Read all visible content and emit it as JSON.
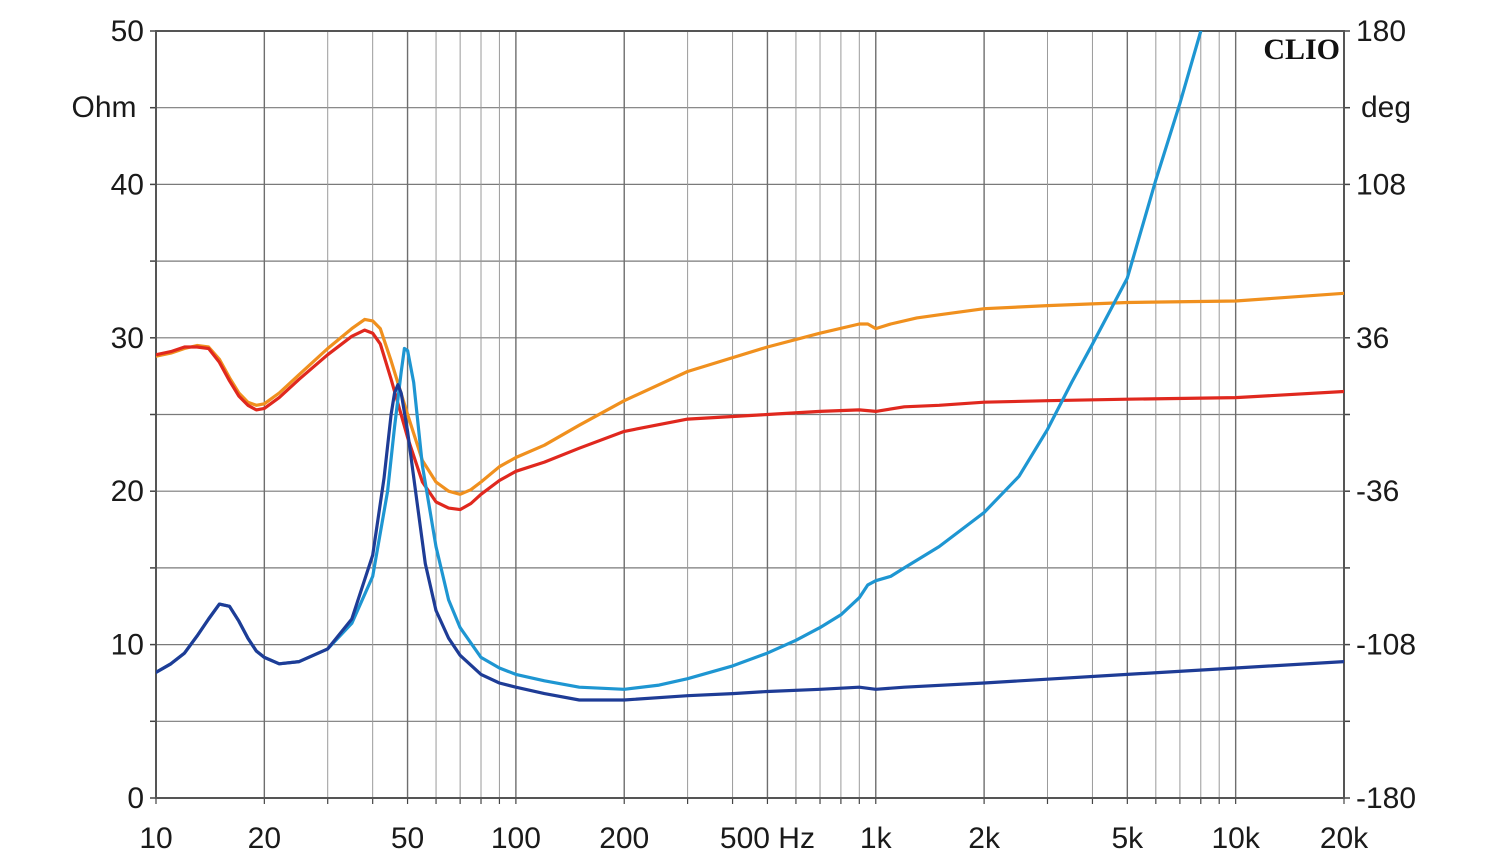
{
  "chart_data": {
    "type": "line",
    "brand": "CLIO",
    "x_axis": {
      "scale": "log",
      "range": [
        10,
        20000
      ],
      "tick_labels": [
        {
          "value": 10,
          "label": "10"
        },
        {
          "value": 20,
          "label": "20"
        },
        {
          "value": 50,
          "label": "50"
        },
        {
          "value": 100,
          "label": "100"
        },
        {
          "value": 200,
          "label": "200"
        },
        {
          "value": 500,
          "label": "500 Hz"
        },
        {
          "value": 1000,
          "label": "1k"
        },
        {
          "value": 2000,
          "label": "2k"
        },
        {
          "value": 5000,
          "label": "5k"
        },
        {
          "value": 10000,
          "label": "10k"
        },
        {
          "value": 20000,
          "label": "20k"
        }
      ]
    },
    "y_left": {
      "unit_label": "Ohm",
      "range": [
        0,
        50
      ],
      "tick_labels": [
        "0",
        "10",
        "20",
        "30",
        "40",
        "50"
      ]
    },
    "y_right": {
      "unit_label": "deg",
      "range": [
        -180,
        180
      ],
      "tick_labels": [
        "-180",
        "-108",
        "-36",
        "36",
        "108",
        "180"
      ]
    },
    "grid": true,
    "series": [
      {
        "axis": "left",
        "color": "#f0901e",
        "points": [
          [
            10,
            28.8
          ],
          [
            11,
            29.0
          ],
          [
            12,
            29.3
          ],
          [
            13,
            29.5
          ],
          [
            14,
            29.4
          ],
          [
            15,
            28.6
          ],
          [
            16,
            27.4
          ],
          [
            17,
            26.4
          ],
          [
            18,
            25.8
          ],
          [
            19,
            25.6
          ],
          [
            20,
            25.7
          ],
          [
            22,
            26.4
          ],
          [
            25,
            27.6
          ],
          [
            30,
            29.3
          ],
          [
            35,
            30.6
          ],
          [
            38,
            31.2
          ],
          [
            40,
            31.1
          ],
          [
            42,
            30.6
          ],
          [
            45,
            28.5
          ],
          [
            50,
            25.0
          ],
          [
            55,
            22.0
          ],
          [
            60,
            20.6
          ],
          [
            65,
            20.0
          ],
          [
            70,
            19.8
          ],
          [
            75,
            20.1
          ],
          [
            80,
            20.6
          ],
          [
            90,
            21.6
          ],
          [
            100,
            22.2
          ],
          [
            120,
            23.0
          ],
          [
            150,
            24.3
          ],
          [
            200,
            25.9
          ],
          [
            300,
            27.8
          ],
          [
            500,
            29.4
          ],
          [
            700,
            30.3
          ],
          [
            900,
            30.9
          ],
          [
            950,
            30.9
          ],
          [
            1000,
            30.6
          ],
          [
            1100,
            30.9
          ],
          [
            1300,
            31.3
          ],
          [
            1500,
            31.5
          ],
          [
            2000,
            31.9
          ],
          [
            3000,
            32.1
          ],
          [
            5000,
            32.3
          ],
          [
            10000,
            32.4
          ],
          [
            20000,
            32.9
          ]
        ]
      },
      {
        "axis": "left",
        "color": "#e0281e",
        "points": [
          [
            10,
            28.9
          ],
          [
            11,
            29.1
          ],
          [
            12,
            29.4
          ],
          [
            13,
            29.4
          ],
          [
            14,
            29.3
          ],
          [
            15,
            28.4
          ],
          [
            16,
            27.2
          ],
          [
            17,
            26.2
          ],
          [
            18,
            25.6
          ],
          [
            19,
            25.3
          ],
          [
            20,
            25.4
          ],
          [
            22,
            26.1
          ],
          [
            25,
            27.3
          ],
          [
            30,
            28.9
          ],
          [
            35,
            30.1
          ],
          [
            38,
            30.5
          ],
          [
            40,
            30.3
          ],
          [
            42,
            29.6
          ],
          [
            45,
            27.3
          ],
          [
            50,
            23.5
          ],
          [
            55,
            20.6
          ],
          [
            60,
            19.3
          ],
          [
            65,
            18.9
          ],
          [
            70,
            18.8
          ],
          [
            75,
            19.2
          ],
          [
            80,
            19.8
          ],
          [
            90,
            20.7
          ],
          [
            100,
            21.3
          ],
          [
            120,
            21.9
          ],
          [
            150,
            22.8
          ],
          [
            200,
            23.9
          ],
          [
            300,
            24.7
          ],
          [
            500,
            25.0
          ],
          [
            700,
            25.2
          ],
          [
            900,
            25.3
          ],
          [
            1000,
            25.2
          ],
          [
            1200,
            25.5
          ],
          [
            1500,
            25.6
          ],
          [
            2000,
            25.8
          ],
          [
            3000,
            25.9
          ],
          [
            5000,
            26.0
          ],
          [
            10000,
            26.1
          ],
          [
            20000,
            26.5
          ]
        ]
      },
      {
        "axis": "right",
        "color": "#1e96d2",
        "points": [
          [
            10,
            -121
          ],
          [
            11,
            -117
          ],
          [
            12,
            -112
          ],
          [
            13,
            -104
          ],
          [
            14,
            -96
          ],
          [
            15,
            -89
          ],
          [
            16,
            -90
          ],
          [
            17,
            -97
          ],
          [
            18,
            -105
          ],
          [
            19,
            -111
          ],
          [
            20,
            -114
          ],
          [
            22,
            -117
          ],
          [
            25,
            -116
          ],
          [
            30,
            -110
          ],
          [
            35,
            -98
          ],
          [
            40,
            -76
          ],
          [
            44,
            -36
          ],
          [
            46,
            -6
          ],
          [
            48,
            20
          ],
          [
            49,
            31
          ],
          [
            50,
            30
          ],
          [
            52,
            15
          ],
          [
            55,
            -24
          ],
          [
            60,
            -62
          ],
          [
            65,
            -87
          ],
          [
            70,
            -100
          ],
          [
            80,
            -114
          ],
          [
            90,
            -119
          ],
          [
            100,
            -122
          ],
          [
            120,
            -125
          ],
          [
            150,
            -128
          ],
          [
            200,
            -129
          ],
          [
            250,
            -127
          ],
          [
            300,
            -124
          ],
          [
            400,
            -118
          ],
          [
            500,
            -112
          ],
          [
            600,
            -106
          ],
          [
            700,
            -100
          ],
          [
            800,
            -94
          ],
          [
            900,
            -86
          ],
          [
            950,
            -80
          ],
          [
            1000,
            -78
          ],
          [
            1100,
            -76
          ],
          [
            1200,
            -72
          ],
          [
            1500,
            -62
          ],
          [
            2000,
            -46
          ],
          [
            2500,
            -29
          ],
          [
            3000,
            -7
          ],
          [
            3500,
            15
          ],
          [
            4000,
            33
          ],
          [
            5000,
            64
          ],
          [
            6000,
            110
          ],
          [
            7000,
            146
          ],
          [
            8000,
            180
          ]
        ]
      },
      {
        "axis": "right",
        "color": "#1e3c96",
        "points": [
          [
            10,
            -121
          ],
          [
            11,
            -117
          ],
          [
            12,
            -112
          ],
          [
            13,
            -104
          ],
          [
            14,
            -96
          ],
          [
            15,
            -89
          ],
          [
            16,
            -90
          ],
          [
            17,
            -97
          ],
          [
            18,
            -105
          ],
          [
            19,
            -111
          ],
          [
            20,
            -114
          ],
          [
            22,
            -117
          ],
          [
            25,
            -116
          ],
          [
            30,
            -110
          ],
          [
            35,
            -96
          ],
          [
            40,
            -66
          ],
          [
            43,
            -30
          ],
          [
            45,
            0
          ],
          [
            46,
            10
          ],
          [
            47,
            14
          ],
          [
            48,
            10
          ],
          [
            50,
            -8
          ],
          [
            53,
            -40
          ],
          [
            56,
            -70
          ],
          [
            60,
            -92
          ],
          [
            65,
            -105
          ],
          [
            70,
            -113
          ],
          [
            80,
            -122
          ],
          [
            90,
            -126
          ],
          [
            100,
            -128
          ],
          [
            120,
            -131
          ],
          [
            150,
            -134
          ],
          [
            200,
            -134
          ],
          [
            300,
            -132
          ],
          [
            400,
            -131
          ],
          [
            500,
            -130
          ],
          [
            700,
            -129
          ],
          [
            900,
            -128
          ],
          [
            1000,
            -129
          ],
          [
            1200,
            -128
          ],
          [
            2000,
            -126
          ],
          [
            5000,
            -122
          ],
          [
            10000,
            -119
          ],
          [
            20000,
            -116
          ]
        ]
      }
    ]
  }
}
